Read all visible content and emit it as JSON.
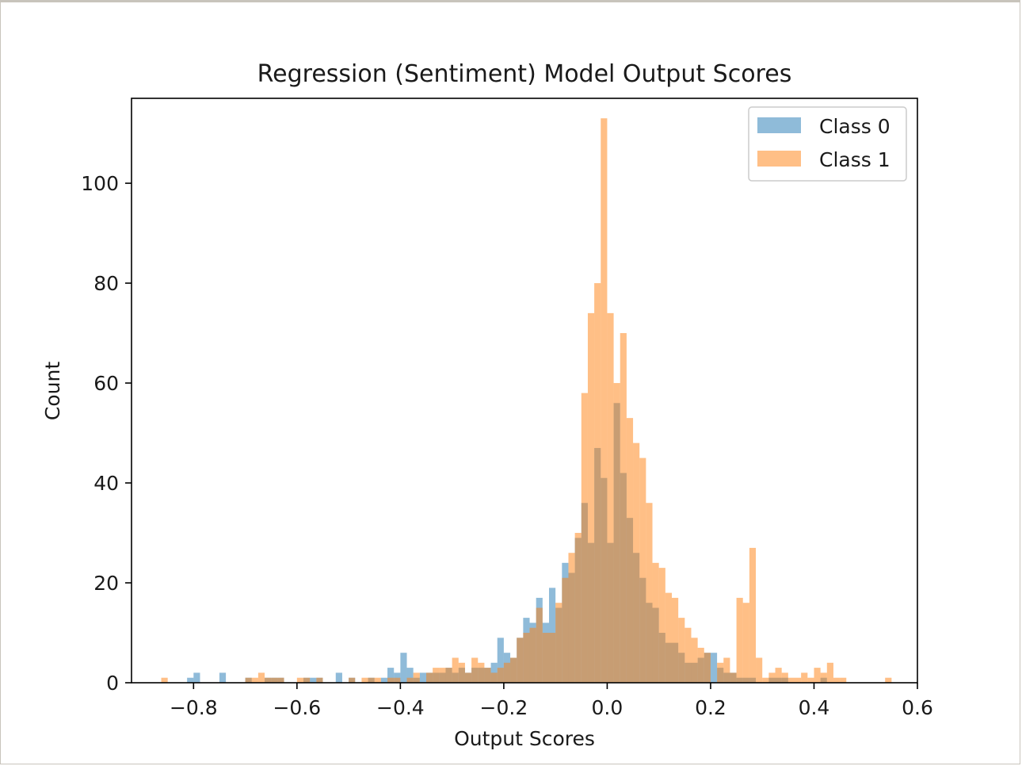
{
  "chart_data": {
    "type": "histogram",
    "title": "Regression (Sentiment) Model Output Scores",
    "xlabel": "Output Scores",
    "ylabel": "Count",
    "xlim": [
      -0.92,
      0.6
    ],
    "ylim": [
      0,
      117
    ],
    "xticks": [
      -0.8,
      -0.6,
      -0.4,
      -0.2,
      0.0,
      0.2,
      0.4,
      0.6
    ],
    "xtick_labels": [
      "−0.8",
      "−0.6",
      "−0.4",
      "−0.2",
      "0.0",
      "0.2",
      "0.4",
      "0.6"
    ],
    "yticks": [
      0,
      20,
      40,
      60,
      80,
      100
    ],
    "ytick_labels": [
      "0",
      "20",
      "40",
      "60",
      "80",
      "100"
    ],
    "grid": false,
    "legend_position": "top-right",
    "bin_width": 0.0125,
    "series": [
      {
        "name": "Class 0",
        "color": "#1f77b4",
        "alpha": 0.5,
        "bins": [
          [
            -0.8125,
            1
          ],
          [
            -0.8,
            2
          ],
          [
            -0.75,
            2
          ],
          [
            -0.7,
            1
          ],
          [
            -0.6625,
            1
          ],
          [
            -0.65,
            1
          ],
          [
            -0.6375,
            1
          ],
          [
            -0.5875,
            1
          ],
          [
            -0.575,
            1
          ],
          [
            -0.5625,
            1
          ],
          [
            -0.525,
            2
          ],
          [
            -0.5,
            1
          ],
          [
            -0.4625,
            1
          ],
          [
            -0.4375,
            1
          ],
          [
            -0.425,
            3
          ],
          [
            -0.4125,
            2
          ],
          [
            -0.4,
            6
          ],
          [
            -0.3875,
            3
          ],
          [
            -0.375,
            1
          ],
          [
            -0.3625,
            2
          ],
          [
            -0.35,
            2
          ],
          [
            -0.3375,
            2
          ],
          [
            -0.325,
            2
          ],
          [
            -0.3125,
            3
          ],
          [
            -0.3,
            2
          ],
          [
            -0.2875,
            3
          ],
          [
            -0.275,
            2
          ],
          [
            -0.2625,
            3
          ],
          [
            -0.25,
            3
          ],
          [
            -0.2375,
            3
          ],
          [
            -0.225,
            4
          ],
          [
            -0.2125,
            9
          ],
          [
            -0.2,
            6
          ],
          [
            -0.1875,
            5
          ],
          [
            -0.175,
            9
          ],
          [
            -0.1625,
            13
          ],
          [
            -0.15,
            12
          ],
          [
            -0.1375,
            17
          ],
          [
            -0.125,
            12
          ],
          [
            -0.1125,
            19
          ],
          [
            -0.1,
            15
          ],
          [
            -0.0875,
            24
          ],
          [
            -0.075,
            22
          ],
          [
            -0.0625,
            29
          ],
          [
            -0.05,
            36
          ],
          [
            -0.0375,
            28
          ],
          [
            -0.025,
            47
          ],
          [
            -0.0125,
            41
          ],
          [
            0.0,
            28
          ],
          [
            0.0125,
            56
          ],
          [
            0.025,
            42
          ],
          [
            0.0375,
            33
          ],
          [
            0.05,
            26
          ],
          [
            0.0625,
            21
          ],
          [
            0.075,
            16
          ],
          [
            0.0875,
            15
          ],
          [
            0.1,
            10
          ],
          [
            0.1125,
            8
          ],
          [
            0.125,
            8
          ],
          [
            0.1375,
            6
          ],
          [
            0.15,
            4
          ],
          [
            0.1625,
            4
          ],
          [
            0.175,
            5
          ],
          [
            0.1875,
            6
          ],
          [
            0.2,
            6
          ],
          [
            0.2125,
            3
          ],
          [
            0.225,
            2
          ],
          [
            0.2375,
            2
          ],
          [
            0.25,
            1
          ],
          [
            0.2625,
            1
          ],
          [
            0.275,
            1
          ],
          [
            0.3125,
            1
          ],
          [
            0.325,
            1
          ],
          [
            0.3375,
            1
          ],
          [
            0.4125,
            1
          ]
        ]
      },
      {
        "name": "Class 1",
        "color": "#ff7f0e",
        "alpha": 0.5,
        "bins": [
          [
            -0.8625,
            1
          ],
          [
            -0.7,
            1
          ],
          [
            -0.6875,
            1
          ],
          [
            -0.675,
            2
          ],
          [
            -0.6625,
            1
          ],
          [
            -0.65,
            1
          ],
          [
            -0.6375,
            1
          ],
          [
            -0.6,
            1
          ],
          [
            -0.5875,
            1
          ],
          [
            -0.5625,
            1
          ],
          [
            -0.5,
            1
          ],
          [
            -0.475,
            1
          ],
          [
            -0.4625,
            1
          ],
          [
            -0.45,
            1
          ],
          [
            -0.425,
            1
          ],
          [
            -0.4125,
            1
          ],
          [
            -0.3875,
            1
          ],
          [
            -0.375,
            2
          ],
          [
            -0.35,
            2
          ],
          [
            -0.3375,
            3
          ],
          [
            -0.325,
            3
          ],
          [
            -0.3125,
            3
          ],
          [
            -0.3,
            5
          ],
          [
            -0.2875,
            4
          ],
          [
            -0.275,
            2
          ],
          [
            -0.2625,
            5
          ],
          [
            -0.25,
            4
          ],
          [
            -0.2375,
            3
          ],
          [
            -0.225,
            2
          ],
          [
            -0.2125,
            3
          ],
          [
            -0.2,
            4
          ],
          [
            -0.1875,
            5
          ],
          [
            -0.175,
            9
          ],
          [
            -0.1625,
            10
          ],
          [
            -0.15,
            11
          ],
          [
            -0.1375,
            15
          ],
          [
            -0.125,
            10
          ],
          [
            -0.1125,
            10
          ],
          [
            -0.1,
            16
          ],
          [
            -0.0875,
            21
          ],
          [
            -0.075,
            26
          ],
          [
            -0.0625,
            30
          ],
          [
            -0.05,
            58
          ],
          [
            -0.0375,
            74
          ],
          [
            -0.025,
            80
          ],
          [
            -0.0125,
            113
          ],
          [
            0.0,
            74
          ],
          [
            0.0125,
            60
          ],
          [
            0.025,
            70
          ],
          [
            0.0375,
            53
          ],
          [
            0.05,
            48
          ],
          [
            0.0625,
            45
          ],
          [
            0.075,
            36
          ],
          [
            0.0875,
            24
          ],
          [
            0.1,
            23
          ],
          [
            0.1125,
            18
          ],
          [
            0.125,
            17
          ],
          [
            0.1375,
            13
          ],
          [
            0.15,
            11
          ],
          [
            0.1625,
            9
          ],
          [
            0.175,
            7
          ],
          [
            0.1875,
            6
          ],
          [
            0.2125,
            4
          ],
          [
            0.225,
            5
          ],
          [
            0.2375,
            2
          ],
          [
            0.25,
            17
          ],
          [
            0.2625,
            16
          ],
          [
            0.275,
            27
          ],
          [
            0.2875,
            5
          ],
          [
            0.3,
            1
          ],
          [
            0.3125,
            2
          ],
          [
            0.325,
            3
          ],
          [
            0.3375,
            2
          ],
          [
            0.35,
            1
          ],
          [
            0.3625,
            1
          ],
          [
            0.375,
            2
          ],
          [
            0.3875,
            1
          ],
          [
            0.4,
            3
          ],
          [
            0.4125,
            2
          ],
          [
            0.425,
            4
          ],
          [
            0.4375,
            1
          ],
          [
            0.45,
            1
          ],
          [
            0.5375,
            1
          ]
        ]
      }
    ]
  }
}
